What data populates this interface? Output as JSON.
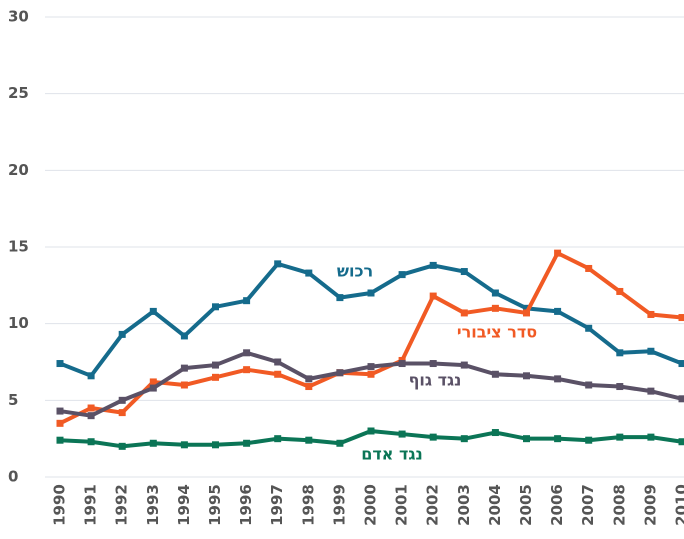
{
  "chart_data": {
    "type": "line",
    "categories": [
      "1990",
      "1991",
      "1992",
      "1993",
      "1994",
      "1995",
      "1996",
      "1997",
      "1998",
      "1999",
      "2000",
      "2001",
      "2002",
      "2003",
      "2004",
      "2005",
      "2006",
      "2007",
      "2008",
      "2009",
      "2010"
    ],
    "series": [
      {
        "name": "רכוש",
        "color": "#156b8c",
        "values": [
          7.4,
          6.6,
          9.3,
          10.8,
          9.2,
          11.1,
          11.5,
          13.9,
          13.3,
          11.7,
          12.0,
          13.2,
          13.8,
          13.4,
          12.0,
          11.0,
          10.8,
          9.7,
          8.1,
          8.2,
          7.4
        ]
      },
      {
        "name": "סדר ציבורי",
        "color": "#f15a24",
        "values": [
          3.5,
          4.5,
          4.2,
          6.2,
          6.0,
          6.5,
          7.0,
          6.7,
          5.9,
          6.8,
          6.7,
          7.6,
          11.8,
          10.7,
          11.0,
          10.7,
          14.6,
          13.6,
          12.1,
          10.6,
          10.4
        ]
      },
      {
        "name": "נגד גוף",
        "color": "#5a5166",
        "values": [
          4.3,
          4.0,
          5.0,
          5.8,
          7.1,
          7.3,
          8.1,
          7.5,
          6.4,
          6.8,
          7.2,
          7.4,
          7.4,
          7.3,
          6.7,
          6.6,
          6.4,
          6.0,
          5.9,
          5.6,
          5.1
        ]
      },
      {
        "name": "נגד אדם",
        "color": "#0b7556",
        "values": [
          2.4,
          2.3,
          2.0,
          2.2,
          2.1,
          2.1,
          2.2,
          2.5,
          2.4,
          2.2,
          3.0,
          2.8,
          2.6,
          2.5,
          2.9,
          2.5,
          2.5,
          2.4,
          2.6,
          2.6,
          2.3
        ]
      }
    ],
    "ylim": [
      0,
      30
    ],
    "yticks": [
      0,
      5,
      10,
      15,
      20,
      25,
      30
    ],
    "grid": true
  }
}
